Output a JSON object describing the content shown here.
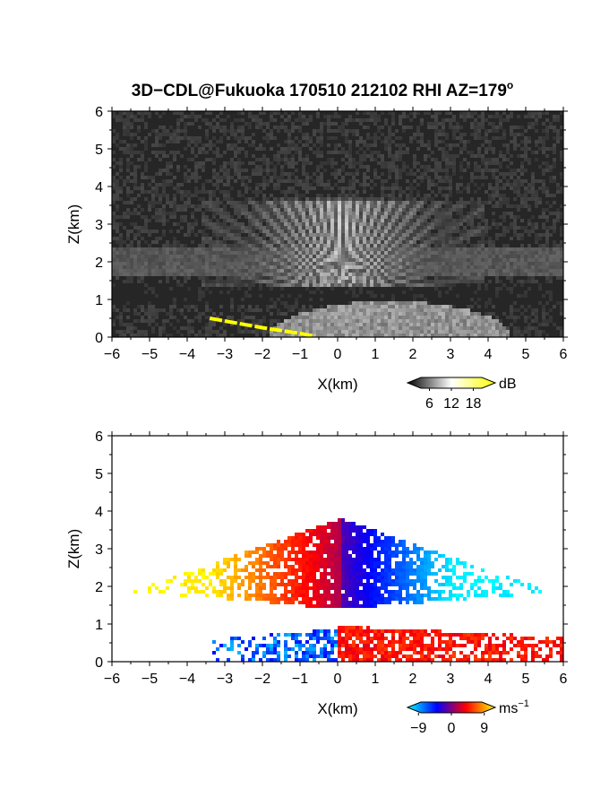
{
  "figure": {
    "title": "3D−CDL@Fukuoka 170510 212102 RHI AZ=179",
    "title_superscript": "o"
  },
  "chart_data": [
    {
      "type": "heatmap",
      "name": "reflectivity",
      "xlabel": "X(km)",
      "ylabel": "Z(km)",
      "xlim": [
        -6,
        6
      ],
      "ylim": [
        0,
        6
      ],
      "xticks": [
        -6,
        -5,
        -4,
        -3,
        -2,
        -1,
        0,
        1,
        2,
        3,
        4,
        5,
        6
      ],
      "yticks": [
        0,
        1,
        2,
        3,
        4,
        5,
        6
      ],
      "colorbar": {
        "unit": "dB",
        "ticks": [
          6,
          12,
          18
        ],
        "range": [
          0,
          24
        ],
        "colors": [
          "#000000",
          "#ffffff",
          "#ffff00"
        ]
      },
      "background_colors": [
        "#262626",
        "#4a4a4a"
      ],
      "layers": [
        {
          "feature": "fan",
          "x_range": [
            -3.6,
            3.9
          ],
          "z_range": [
            1.3,
            3.75
          ],
          "center_x": 0.1,
          "base_z": 1.3
        },
        {
          "feature": "band",
          "x_range": [
            -6,
            6
          ],
          "z_range": [
            0.85,
            1.4
          ]
        },
        {
          "feature": "dome",
          "x_range": [
            -1.8,
            4.6
          ],
          "z_range": [
            0,
            0.95
          ]
        },
        {
          "feature": "ground_line",
          "color": "#ffff00",
          "points": [
            [
              -3.4,
              0.5
            ],
            [
              -2.0,
              0.25
            ],
            [
              -1.0,
              0.1
            ],
            [
              -0.6,
              0.02
            ]
          ]
        }
      ]
    },
    {
      "type": "heatmap",
      "name": "doppler_velocity",
      "xlabel": "X(km)",
      "ylabel": "Z(km)",
      "xlim": [
        -6,
        6
      ],
      "ylim": [
        0,
        6
      ],
      "xticks": [
        -6,
        -5,
        -4,
        -3,
        -2,
        -1,
        0,
        1,
        2,
        3,
        4,
        5,
        6
      ],
      "yticks": [
        0,
        1,
        2,
        3,
        4,
        5,
        6
      ],
      "colorbar": {
        "unit": "ms",
        "unit_exponent": "−1",
        "ticks": [
          "−9",
          "0",
          "9"
        ],
        "tick_values": [
          -9,
          0,
          9
        ],
        "range": [
          -12,
          12
        ],
        "colors": [
          "#00ffff",
          "#0000ff",
          "#ff0000",
          "#ffff00"
        ]
      },
      "regions": [
        {
          "label": "upper-left",
          "x_range": [
            -6,
            0.1
          ],
          "z_range": [
            1.35,
            3.85
          ],
          "velocity_range": [
            1,
            12
          ]
        },
        {
          "label": "upper-right",
          "x_range": [
            0.1,
            6
          ],
          "z_range": [
            1.35,
            3.85
          ],
          "velocity_range": [
            -12,
            -1
          ]
        },
        {
          "label": "lower-left",
          "x_range": [
            -3.5,
            0
          ],
          "z_range": [
            0,
            0.95
          ],
          "velocity_range": [
            -10,
            -3
          ]
        },
        {
          "label": "lower-right",
          "x_range": [
            0,
            6
          ],
          "z_range": [
            0,
            0.95
          ],
          "velocity_range": [
            2,
            6
          ]
        }
      ]
    }
  ]
}
